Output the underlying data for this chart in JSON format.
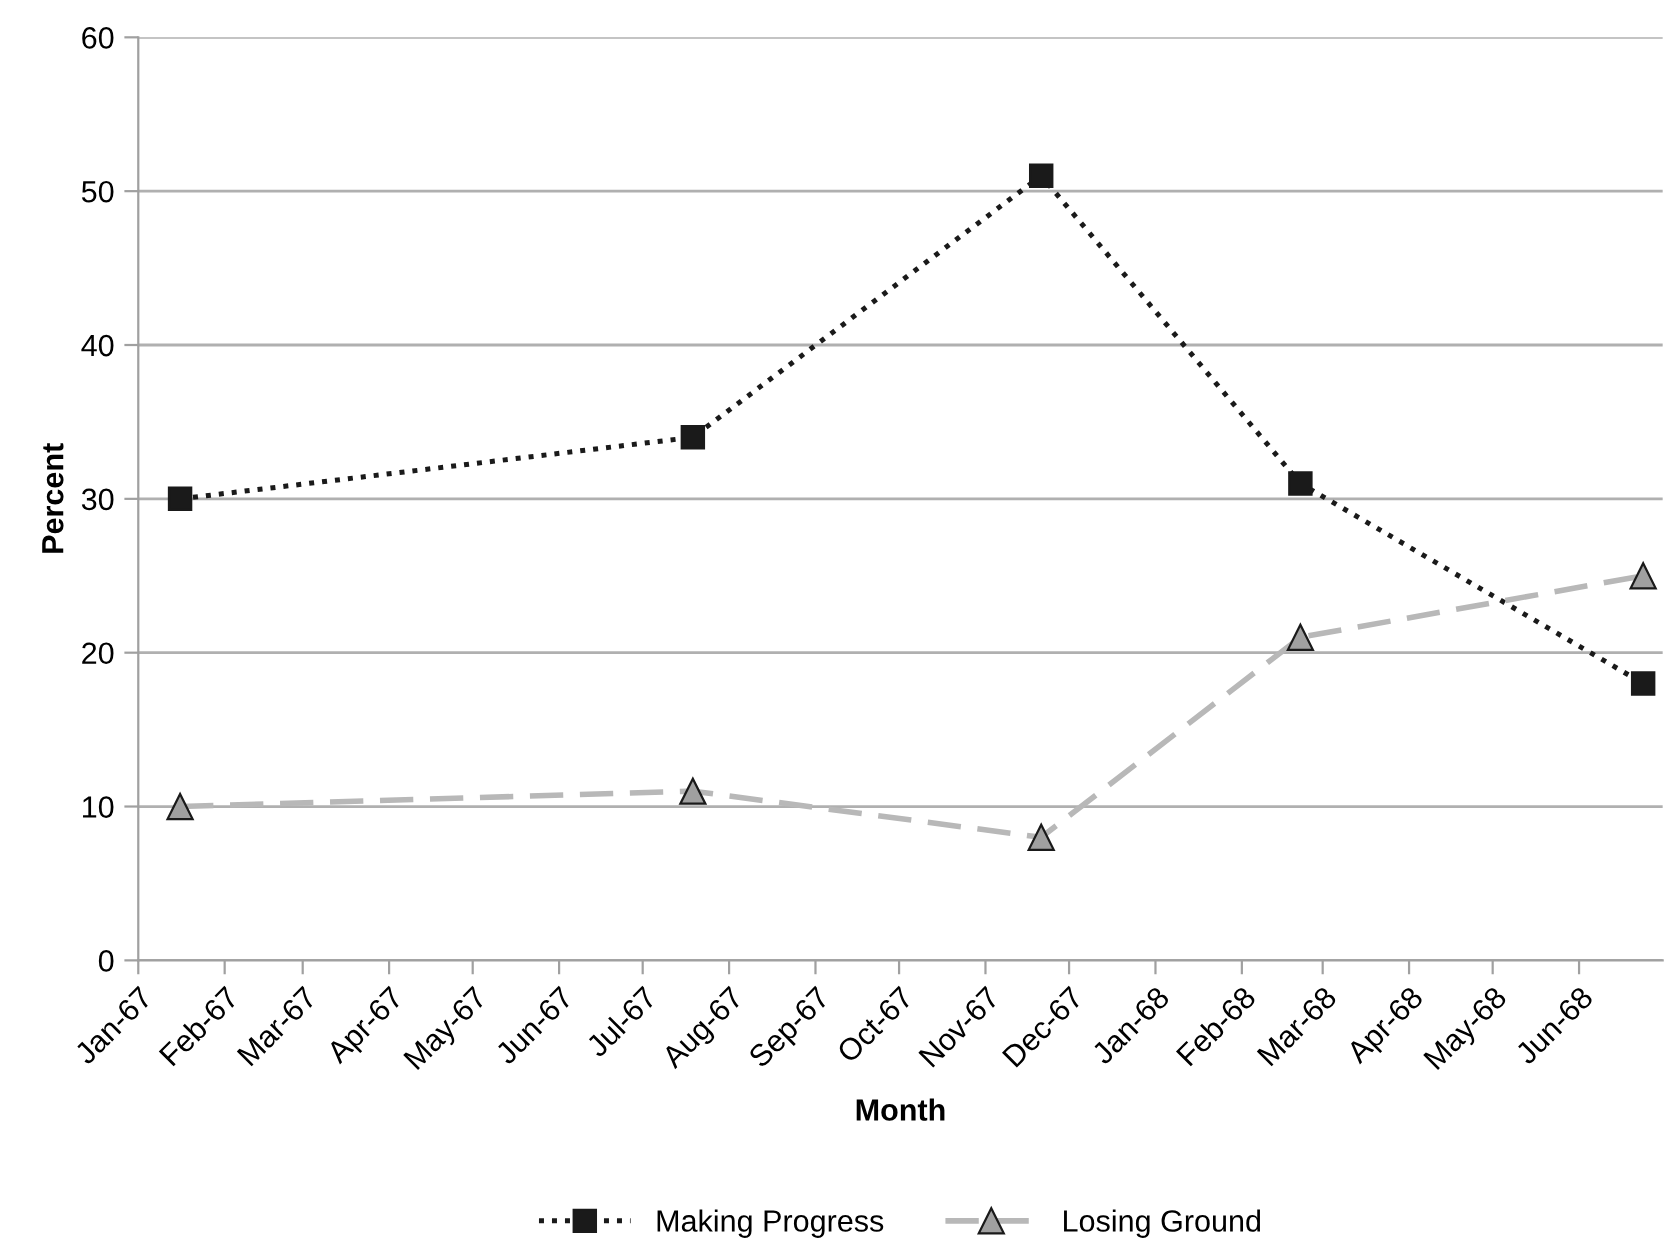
{
  "chart_data": {
    "type": "line",
    "xlabel": "Month",
    "ylabel": "Percent",
    "xlim": [
      "1967-01-01",
      "1968-07-01"
    ],
    "xticks": [
      {
        "value": "1967-01-01",
        "label": "Jan-67"
      },
      {
        "value": "1967-02-01",
        "label": "Feb-67"
      },
      {
        "value": "1967-03-01",
        "label": "Mar-67"
      },
      {
        "value": "1967-04-01",
        "label": "Apr-67"
      },
      {
        "value": "1967-05-01",
        "label": "May-67"
      },
      {
        "value": "1967-06-01",
        "label": "Jun-67"
      },
      {
        "value": "1967-07-01",
        "label": "Jul-67"
      },
      {
        "value": "1967-08-01",
        "label": "Aug-67"
      },
      {
        "value": "1967-09-01",
        "label": "Sep-67"
      },
      {
        "value": "1967-10-01",
        "label": "Oct-67"
      },
      {
        "value": "1967-11-01",
        "label": "Nov-67"
      },
      {
        "value": "1967-12-01",
        "label": "Dec-67"
      },
      {
        "value": "1968-01-01",
        "label": "Jan-68"
      },
      {
        "value": "1968-02-01",
        "label": "Feb-68"
      },
      {
        "value": "1968-03-01",
        "label": "Mar-68"
      },
      {
        "value": "1968-04-01",
        "label": "Apr-68"
      },
      {
        "value": "1968-05-01",
        "label": "May-68"
      },
      {
        "value": "1968-06-01",
        "label": "Jun-68"
      }
    ],
    "ylim": [
      0,
      60
    ],
    "yticks": [
      0,
      10,
      20,
      30,
      40,
      50,
      60
    ],
    "grid": "y",
    "legend": "bottom",
    "x": [
      "1967-01-16",
      "1967-07-19",
      "1967-11-21",
      "1968-02-22",
      "1968-06-24"
    ],
    "series": [
      {
        "name": "Making Progress",
        "color": "#1a1a1a",
        "values": [
          30,
          34,
          51,
          31,
          18
        ],
        "marker": "square",
        "line_style": "dotted"
      },
      {
        "name": "Losing Ground",
        "color": "#b8b8b8",
        "values": [
          10,
          11,
          8,
          21,
          25
        ],
        "marker": "triangle",
        "line_style": "dashed"
      }
    ]
  }
}
